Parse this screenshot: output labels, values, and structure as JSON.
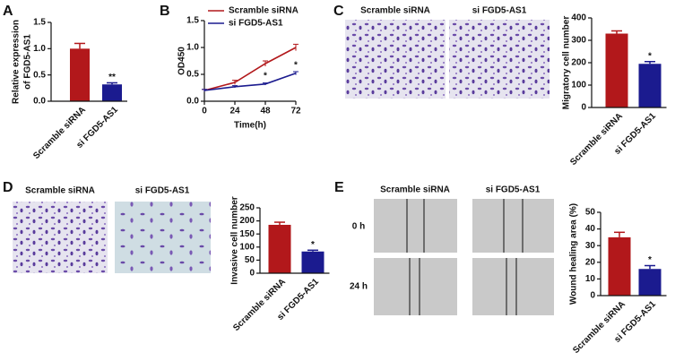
{
  "chart_data": [
    {
      "type": "bar",
      "panel": "A",
      "ylabel": [
        "Relative expression",
        "of FGD5-AS1"
      ],
      "categories": [
        "Scramble siRNA",
        "si FGD5-AS1"
      ],
      "values": [
        1.0,
        0.32
      ],
      "errors": [
        0.1,
        0.03
      ],
      "colors": [
        "#b2181b",
        "#1b1b8f"
      ],
      "significance": [
        null,
        "**"
      ],
      "ylim": [
        0,
        1.5
      ],
      "yticks": [
        {
          "value": 0,
          "label": "0.0"
        },
        0.5,
        {
          "value": 1,
          "label": "1.0"
        },
        1.5
      ]
    },
    {
      "type": "line",
      "panel": "B",
      "ylabel": [
        "OD450"
      ],
      "xlabel": "Time(h)",
      "x": [
        0,
        24,
        48,
        72
      ],
      "xlim": [
        0,
        72
      ],
      "xticks": [
        0,
        24,
        48,
        72
      ],
      "series": [
        {
          "name": "Scramble siRNA",
          "color": "#b2181b",
          "values": [
            0.2,
            0.35,
            0.7,
            1.0
          ],
          "errors": [
            0.02,
            0.04,
            0.05,
            0.06
          ],
          "significance": [
            null,
            null,
            null,
            null
          ]
        },
        {
          "name": "si FGD5-AS1",
          "color": "#1b1b8f",
          "values": [
            0.2,
            0.27,
            0.32,
            0.52
          ],
          "errors": [
            0.02,
            0.02,
            0.02,
            0.03
          ],
          "significance": [
            null,
            null,
            "*",
            "*"
          ]
        }
      ],
      "ylim": [
        0,
        1.5
      ],
      "yticks": [
        {
          "value": 0,
          "label": "0.0"
        },
        0.5,
        {
          "value": 1,
          "label": "1.0"
        },
        1.5
      ]
    },
    {
      "type": "bar",
      "panel": "C",
      "ylabel": [
        "Migratory cell number"
      ],
      "image_labels": [
        "Scramble siRNA",
        "si FGD5-AS1"
      ],
      "categories": [
        "Scramble siRNA",
        "si FGD5-AS1"
      ],
      "values": [
        330,
        195
      ],
      "errors": [
        12,
        10
      ],
      "colors": [
        "#b2181b",
        "#1b1b8f"
      ],
      "significance": [
        null,
        "*"
      ],
      "ylim": [
        0,
        400
      ],
      "yticks": [
        0,
        100,
        200,
        300,
        400
      ]
    },
    {
      "type": "bar",
      "panel": "D",
      "ylabel": [
        "Invasive cell number"
      ],
      "image_labels": [
        "Scramble siRNA",
        "si FGD5-AS1"
      ],
      "categories": [
        "Scramble siRNA",
        "si FGD5-AS1"
      ],
      "values": [
        185,
        83
      ],
      "errors": [
        10,
        5
      ],
      "colors": [
        "#b2181b",
        "#1b1b8f"
      ],
      "significance": [
        null,
        "*"
      ],
      "ylim": [
        0,
        250
      ],
      "yticks": [
        0,
        50,
        100,
        150,
        200,
        250
      ]
    },
    {
      "type": "bar",
      "panel": "E",
      "ylabel": [
        "Wound healing area (%)"
      ],
      "image_labels": [
        "Scramble siRNA",
        "si FGD5-AS1"
      ],
      "row_labels": [
        "0 h",
        "24 h"
      ],
      "categories": [
        "Scramble siRNA",
        "si FGD5-AS1"
      ],
      "values": [
        35,
        16
      ],
      "errors": [
        3,
        2
      ],
      "colors": [
        "#b2181b",
        "#1b1b8f"
      ],
      "significance": [
        null,
        "*"
      ],
      "ylim": [
        0,
        50
      ],
      "yticks": [
        0,
        10,
        20,
        30,
        40,
        50
      ]
    }
  ]
}
